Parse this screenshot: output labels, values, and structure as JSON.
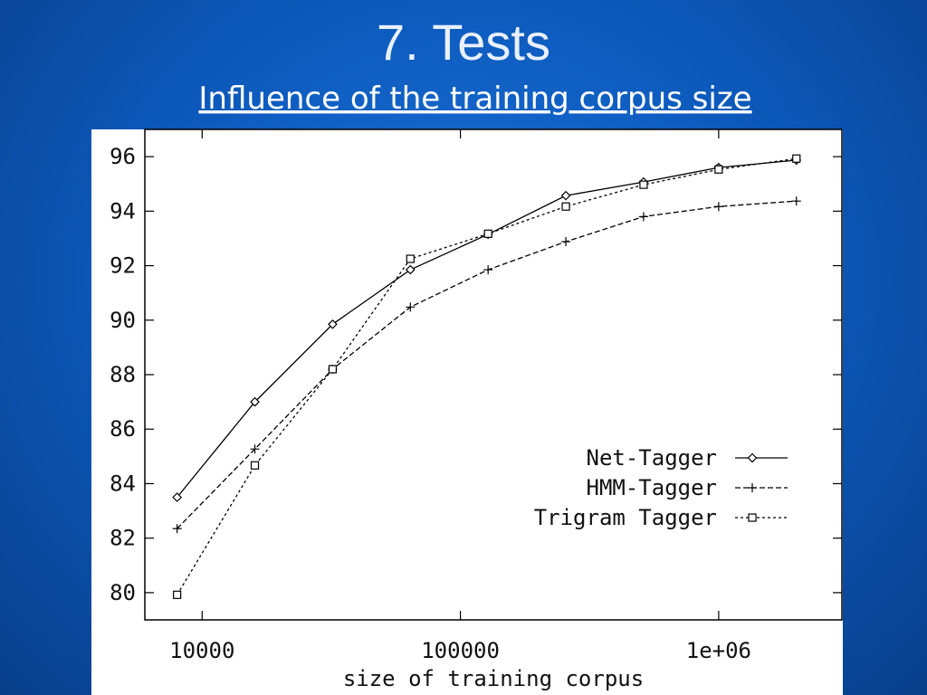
{
  "slide": {
    "title": "7. Tests",
    "subtitle": "Influence of the training corpus size"
  },
  "chart_data": {
    "type": "line",
    "x_label": "size of training corpus",
    "log_x": true,
    "x": [
      8000,
      16000,
      32000,
      64000,
      128000,
      256000,
      512000,
      1000000,
      2000000
    ],
    "xlim": [
      6000,
      3000000
    ],
    "xticks": [
      10000,
      100000,
      {
        "value": 1000000,
        "label": "1e+06"
      }
    ],
    "ylim": [
      79,
      97
    ],
    "yticks": [
      80,
      82,
      84,
      86,
      88,
      90,
      92,
      94,
      96
    ],
    "grid": false,
    "legend": "lower right",
    "series": [
      {
        "name": "Net-Tagger",
        "color": "#000000",
        "dash": "solid",
        "marker": "diamond",
        "values": [
          83.5,
          87.0,
          89.85,
          91.85,
          93.15,
          94.57,
          95.07,
          95.6,
          95.87
        ]
      },
      {
        "name": "HMM-Tagger",
        "color": "#000000",
        "dash": "dashed",
        "marker": "plus",
        "values": [
          82.35,
          85.27,
          88.2,
          90.48,
          91.85,
          92.88,
          93.8,
          94.17,
          94.37
        ]
      },
      {
        "name": "Trigram Tagger",
        "color": "#000000",
        "dash": "dotted",
        "marker": "square",
        "values": [
          79.92,
          84.67,
          88.2,
          92.25,
          93.17,
          94.17,
          94.97,
          95.53,
          95.93
        ]
      }
    ]
  }
}
